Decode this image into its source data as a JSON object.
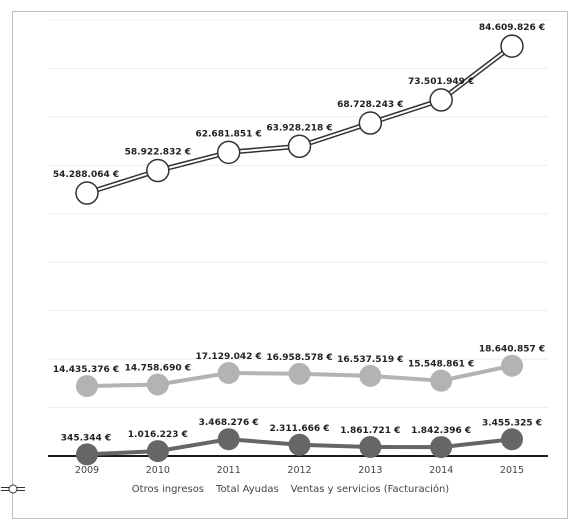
{
  "chart_data": {
    "type": "line",
    "categories": [
      "2009",
      "2010",
      "2011",
      "2012",
      "2013",
      "2014",
      "2015"
    ],
    "series": [
      {
        "name": "Otros ingresos",
        "values": [
          345344,
          1016223,
          3468276,
          2311666,
          1861721,
          1842396,
          3455325
        ],
        "labels": [
          "345.344 €",
          "1.016.223 €",
          "3.468.276 €",
          "2.311.666 €",
          "1.861.721 €",
          "1.842.396 €",
          "3.455.325 €"
        ],
        "color": "#666666"
      },
      {
        "name": "Total Ayudas",
        "values": [
          14435376,
          14758690,
          17129042,
          16958578,
          16537519,
          15548861,
          18640857
        ],
        "labels": [
          "14.435.376 €",
          "14.758.690 €",
          "17.129.042 €",
          "16.958.578 €",
          "16.537.519 €",
          "15.548.861 €",
          "18.640.857 €"
        ],
        "color": "#b3b3b3"
      },
      {
        "name": "Ventas y servicios (Facturación)",
        "values": [
          54288064,
          58922832,
          62681851,
          63928218,
          68728243,
          73501949,
          84609826
        ],
        "labels": [
          "54.288.064 €",
          "58.922.832 €",
          "62.681.851 €",
          "63.928.218 €",
          "68.728.243 €",
          "73.501.949 €",
          "84.609.826 €"
        ],
        "color": "#ffffff"
      }
    ],
    "ylim": [
      0,
      90000000
    ],
    "title": "",
    "xlabel": "",
    "ylabel": "",
    "grid": true,
    "legend": "bottom"
  }
}
